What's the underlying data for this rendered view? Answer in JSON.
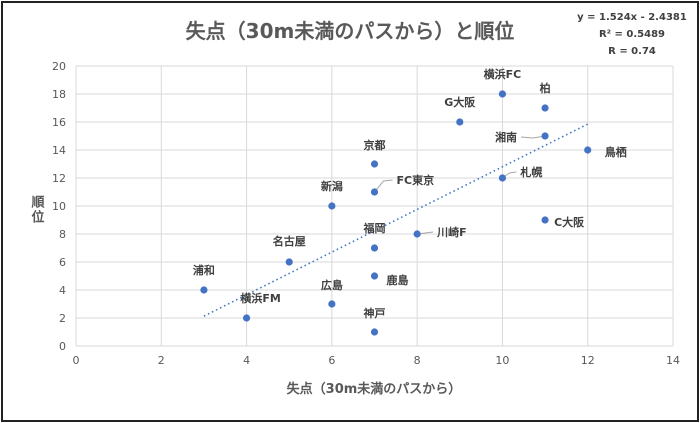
{
  "chart_data": {
    "type": "scatter",
    "title": "失点（30m未満のパスから）と順位",
    "xlabel": "失点（30m未満のパスから）",
    "ylabel": "順位",
    "xlim": [
      0,
      14
    ],
    "ylim": [
      0,
      20
    ],
    "xticks": [
      0,
      2,
      4,
      6,
      8,
      10,
      12,
      14
    ],
    "yticks": [
      0,
      2,
      4,
      6,
      8,
      10,
      12,
      14,
      16,
      18,
      20
    ],
    "grid": true,
    "points": [
      {
        "label": "浦和",
        "x": 3,
        "y": 4
      },
      {
        "label": "横浜FM",
        "x": 4,
        "y": 2
      },
      {
        "label": "名古屋",
        "x": 5,
        "y": 6
      },
      {
        "label": "広島",
        "x": 6,
        "y": 3
      },
      {
        "label": "新潟",
        "x": 6,
        "y": 10
      },
      {
        "label": "京都",
        "x": 7,
        "y": 13
      },
      {
        "label": "FC東京",
        "x": 7,
        "y": 11
      },
      {
        "label": "福岡",
        "x": 7,
        "y": 7
      },
      {
        "label": "鹿島",
        "x": 7,
        "y": 5
      },
      {
        "label": "神戸",
        "x": 7,
        "y": 1
      },
      {
        "label": "川崎F",
        "x": 8,
        "y": 8
      },
      {
        "label": "G大阪",
        "x": 9,
        "y": 16
      },
      {
        "label": "横浜FC",
        "x": 10,
        "y": 18
      },
      {
        "label": "札幌",
        "x": 10,
        "y": 12
      },
      {
        "label": "柏",
        "x": 11,
        "y": 17
      },
      {
        "label": "湘南",
        "x": 11,
        "y": 15
      },
      {
        "label": "C大阪",
        "x": 11,
        "y": 9
      },
      {
        "label": "鳥栖",
        "x": 12,
        "y": 14
      }
    ],
    "trendline": {
      "type": "linear",
      "slope": 1.524,
      "intercept": -2.4381,
      "x_range": [
        3,
        12
      ]
    },
    "annotations": {
      "equation": "y = 1.524x - 2.4381",
      "r2": "R² = 0.5489",
      "r": "R = 0.74"
    },
    "colors": {
      "point": "#4472C4",
      "trend": "#4472C4",
      "grid": "#D9D9D9"
    }
  }
}
